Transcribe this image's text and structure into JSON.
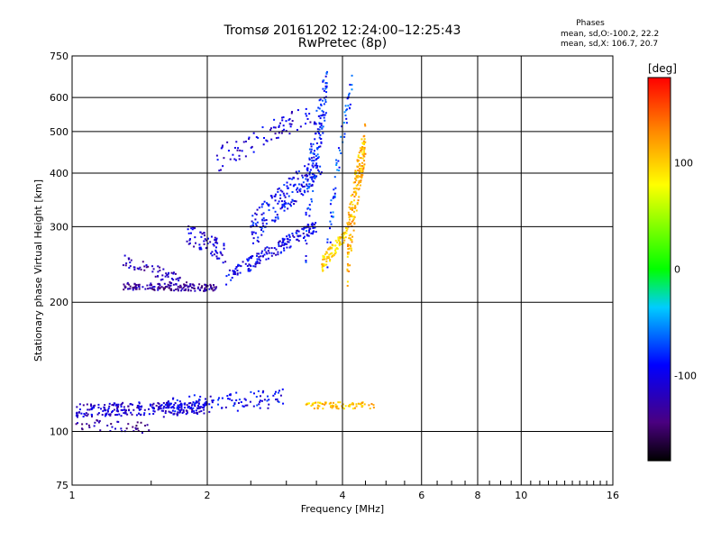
{
  "chart_data": {
    "type": "scatter",
    "title": "Tromsø 20161202 12:24:00–12:25:43",
    "subtitle": "RwPretec (8p)",
    "xlabel": "Frequency [MHz]",
    "ylabel": "Stationary phase Virtual Height [km]",
    "xscale": "log",
    "yscale": "log",
    "xlim": [
      1,
      16
    ],
    "ylim": [
      75,
      750
    ],
    "xticks": [
      1,
      2,
      4,
      6,
      8,
      10,
      16
    ],
    "xtick_labels": [
      "1",
      "2",
      "4",
      "6",
      "8",
      "10",
      "16"
    ],
    "yticks": [
      75,
      100,
      200,
      300,
      400,
      500,
      600,
      750
    ],
    "ytick_labels": [
      "75",
      "100",
      "200",
      "300",
      "400",
      "500",
      "600",
      "750"
    ],
    "grid": true,
    "phase_summary": {
      "title": "Phases",
      "line_o": "mean, sd,O:-100.2, 22.2",
      "line_x": "mean, sd,X: 106.7, 20.7"
    },
    "colorbar": {
      "label": "[deg]",
      "range": [
        -180,
        180
      ],
      "ticks": [
        100,
        0,
        -100
      ],
      "tick_labels": [
        "100",
        "0",
        "-100"
      ]
    },
    "series": [
      {
        "trace": "E",
        "phase": -110,
        "x0": 1.02,
        "x1": 2.0,
        "y0": 112,
        "y1": 114,
        "spread": 4,
        "n": 260
      },
      {
        "trace": "E",
        "phase": -95,
        "x0": 1.6,
        "x1": 3.0,
        "y0": 114,
        "y1": 120,
        "spread": 6,
        "n": 110
      },
      {
        "trace": "E",
        "phase": -130,
        "x0": 1.02,
        "x1": 1.5,
        "y0": 104,
        "y1": 102,
        "spread": 3,
        "n": 40
      },
      {
        "trace": "E",
        "phase": 105,
        "x0": 3.3,
        "x1": 4.7,
        "y0": 115,
        "y1": 115,
        "spread": 2,
        "n": 80
      },
      {
        "trace": "F",
        "phase": -130,
        "x0": 1.3,
        "x1": 2.1,
        "y0": 218,
        "y1": 216,
        "spread": 4,
        "n": 150
      },
      {
        "trace": "F",
        "phase": -120,
        "x0": 1.3,
        "x1": 1.8,
        "y0": 250,
        "y1": 222,
        "spread": 8,
        "n": 60
      },
      {
        "trace": "F",
        "phase": -110,
        "x0": 1.8,
        "x1": 2.2,
        "y0": 290,
        "y1": 260,
        "spread": 15,
        "n": 70
      },
      {
        "trace": "F",
        "phase": -100,
        "x0": 2.2,
        "x1": 3.5,
        "y0": 225,
        "y1": 300,
        "spread": 10,
        "n": 170
      },
      {
        "trace": "F",
        "phase": -95,
        "x0": 2.5,
        "x1": 3.6,
        "y0": 290,
        "y1": 420,
        "spread": 30,
        "n": 180
      },
      {
        "trace": "F",
        "phase": -85,
        "x0": 3.3,
        "x1": 3.7,
        "y0": 300,
        "y1": 640,
        "spread": 80,
        "n": 140
      },
      {
        "trace": "F",
        "phase": -105,
        "x0": 2.1,
        "x1": 3.4,
        "y0": 430,
        "y1": 550,
        "spread": 30,
        "n": 80
      },
      {
        "trace": "F",
        "phase": -75,
        "x0": 3.7,
        "x1": 4.2,
        "y0": 260,
        "y1": 640,
        "spread": 40,
        "n": 60
      },
      {
        "trace": "F",
        "phase": 100,
        "x0": 3.6,
        "x1": 4.1,
        "y0": 245,
        "y1": 290,
        "spread": 10,
        "n": 90
      },
      {
        "trace": "F",
        "phase": 110,
        "x0": 4.1,
        "x1": 4.5,
        "y0": 260,
        "y1": 480,
        "spread": 50,
        "n": 190
      }
    ]
  }
}
